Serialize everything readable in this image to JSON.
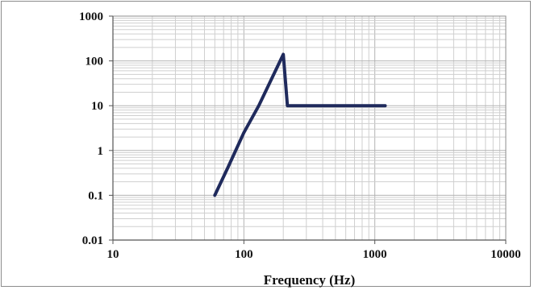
{
  "chart_data": {
    "type": "line",
    "title": "",
    "xlabel": "Frequency (Hz)",
    "ylabel": "",
    "x_scale": "log",
    "y_scale": "log",
    "xlim": [
      10,
      10000
    ],
    "ylim": [
      0.01,
      1000
    ],
    "x_ticks": [
      "10",
      "100",
      "1000",
      "10000"
    ],
    "y_ticks": [
      "1000",
      "100",
      "10",
      "1",
      "0.1",
      "0.01"
    ],
    "grid": true,
    "legend": "none",
    "series": [
      {
        "color": "#1f2a5c",
        "x": [
          60,
          75,
          100,
          130,
          200,
          215,
          1200
        ],
        "y": [
          0.1,
          0.4,
          2.5,
          10,
          140,
          10,
          10
        ]
      }
    ]
  }
}
